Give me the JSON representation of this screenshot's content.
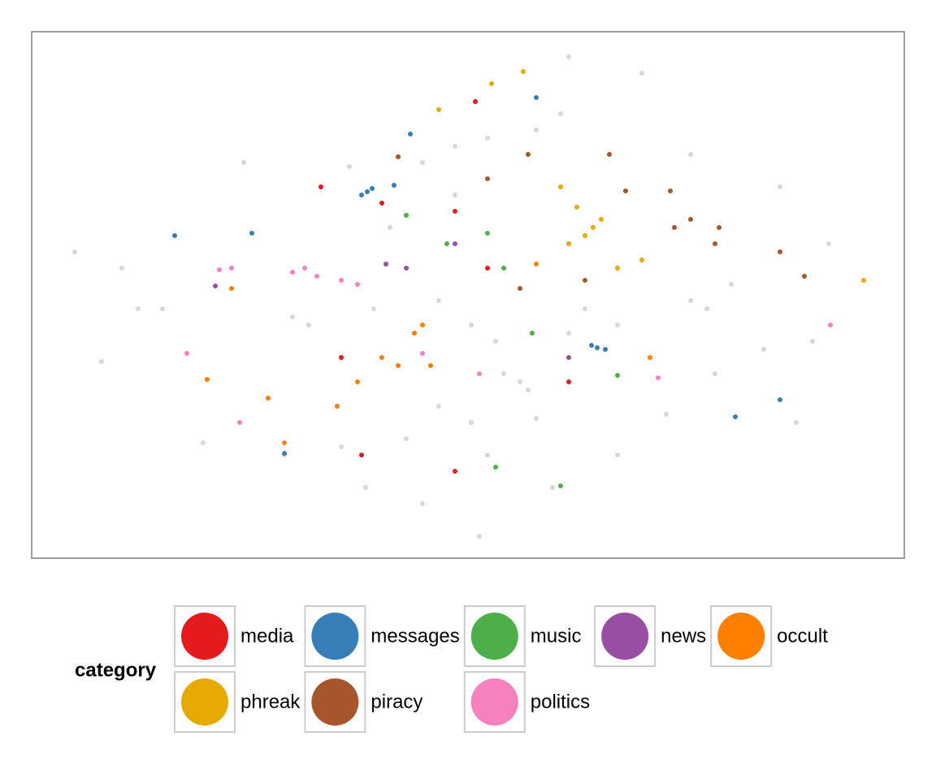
{
  "chart_data": {
    "type": "scatter",
    "xlim": [
      0,
      1074
    ],
    "ylim": [
      0,
      648
    ],
    "legend_title": "category",
    "series": [
      {
        "color": "#d9d9d9",
        "x": [
          561,
          521,
          481,
          441,
          321,
          341,
          601,
          611,
          581,
          831,
          811,
          861,
          541,
          561,
          461,
          411,
          481,
          641,
          721,
          781,
          841,
          901,
          161,
          111,
          53,
          86,
          551,
          661,
          751,
          261,
          921,
          961,
          941,
          311,
          211,
          681,
          721,
          501,
          421,
          391,
          521,
          571,
          621,
          501,
          651,
          621,
          811,
          981,
          131,
          381,
          661,
          541
        ],
        "y": [
          517,
          507,
          487,
          407,
          297,
          287,
          217,
          207,
          227,
          307,
          317,
          337,
          167,
          127,
          147,
          87,
          67,
          87,
          127,
          177,
          227,
          257,
          307,
          357,
          377,
          242,
          27,
          617,
          597,
          487,
          457,
          267,
          167,
          127,
          142,
          307,
          287,
          317,
          307,
          482,
          447,
          267,
          172,
          187,
          547,
          527,
          497,
          387,
          307,
          137,
          277,
          287
        ]
      },
      {
        "name": "media",
        "color": "#e41a1c",
        "x": [
          356,
          521,
          381,
          661,
          521,
          561,
          431,
          546,
          406
        ],
        "y": [
          457,
          427,
          247,
          217,
          107,
          357,
          437,
          562,
          127
        ]
      },
      {
        "name": "messages",
        "color": "#377eb8",
        "x": [
          413,
          406,
          419,
          446,
          696,
          689,
          706,
          466,
          271,
          866,
          921,
          176,
          311,
          621
        ],
        "y": [
          451,
          447,
          455,
          459,
          259,
          262,
          257,
          522,
          400,
          174,
          195,
          397,
          129,
          567
        ]
      },
      {
        "name": "music",
        "color": "#4daf4a",
        "x": [
          561,
          616,
          721,
          581,
          651,
          571,
          511,
          461
        ],
        "y": [
          400,
          277,
          225,
          357,
          89,
          112,
          387,
          422
        ]
      },
      {
        "name": "news",
        "color": "#984ea3",
        "x": [
          436,
          226,
          521,
          661,
          461
        ],
        "y": [
          362,
          335,
          387,
          247,
          357
        ]
      },
      {
        "name": "occult",
        "color": "#ff7f00",
        "x": [
          471,
          481,
          451,
          431,
          401,
          376,
          216,
          246,
          291,
          621,
          761,
          491,
          311
        ],
        "y": [
          277,
          287,
          237,
          247,
          217,
          187,
          220,
          332,
          197,
          362,
          247,
          237,
          142
        ]
      },
      {
        "name": "phreak",
        "color": "#e6ab02",
        "x": [
          671,
          681,
          691,
          751,
          651,
          501,
          605,
          701,
          566,
          1024,
          721,
          661
        ],
        "y": [
          432,
          397,
          407,
          367,
          457,
          552,
          599,
          417,
          584,
          342,
          357,
          387
        ]
      },
      {
        "name": "piracy",
        "color": "#a6562b",
        "x": [
          731,
          791,
          811,
          846,
          841,
          921,
          951,
          611,
          711,
          681,
          601,
          451,
          786,
          561
        ],
        "y": [
          452,
          407,
          417,
          407,
          387,
          377,
          347,
          497,
          497,
          342,
          332,
          494,
          452,
          467
        ]
      },
      {
        "name": "politics",
        "color": "#f781bf",
        "x": [
          246,
          231,
          336,
          321,
          351,
          381,
          481,
          551,
          771,
          983,
          256,
          191,
          401
        ],
        "y": [
          357,
          355,
          357,
          352,
          347,
          342,
          252,
          227,
          222,
          287,
          167,
          252,
          337
        ]
      }
    ]
  }
}
